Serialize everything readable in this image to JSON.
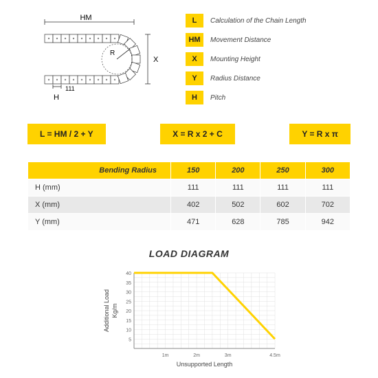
{
  "legend": [
    {
      "key": "L",
      "text": "Calculation of the Chain Length"
    },
    {
      "key": "HM",
      "text": "Movement Distance"
    },
    {
      "key": "X",
      "text": "Mounting Height"
    },
    {
      "key": "Y",
      "text": "Radius Distance"
    },
    {
      "key": "H",
      "text": "Pitch"
    }
  ],
  "diagram": {
    "hm_label": "HM",
    "r_label": "R",
    "x_label": "X",
    "h_label": "H",
    "h_value": "111"
  },
  "formulas": [
    "L = HM / 2 + Y",
    "X = R x 2 + C",
    "Y = R x π"
  ],
  "table": {
    "header": [
      "Bending Radius",
      "150",
      "200",
      "250",
      "300"
    ],
    "rows": [
      [
        "H (mm)",
        "111",
        "111",
        "111",
        "111"
      ],
      [
        "X (mm)",
        "402",
        "502",
        "602",
        "702"
      ],
      [
        "Y (mm)",
        "471",
        "628",
        "785",
        "942"
      ]
    ]
  },
  "chart": {
    "title": "LOAD DIAGRAM",
    "ylabel": "Additional Load\nKg/m",
    "xlabel": "Unsupported Length",
    "yticks": [
      5,
      10,
      15,
      20,
      25,
      30,
      35,
      40
    ],
    "xticks": [
      "1m",
      "2m",
      "3m",
      "4.5m"
    ],
    "ylim": [
      0,
      40
    ],
    "xlim": [
      0,
      4.5
    ],
    "grid_color": "#e0e0e0",
    "axis_color": "#888",
    "line_color": "#ffd200",
    "line_width": 3,
    "points": [
      [
        0,
        40
      ],
      [
        2.5,
        40
      ],
      [
        4.5,
        5
      ]
    ],
    "label_fontsize": 9
  },
  "colors": {
    "accent": "#ffd200",
    "grid": "#e0e0e0",
    "text": "#333"
  }
}
